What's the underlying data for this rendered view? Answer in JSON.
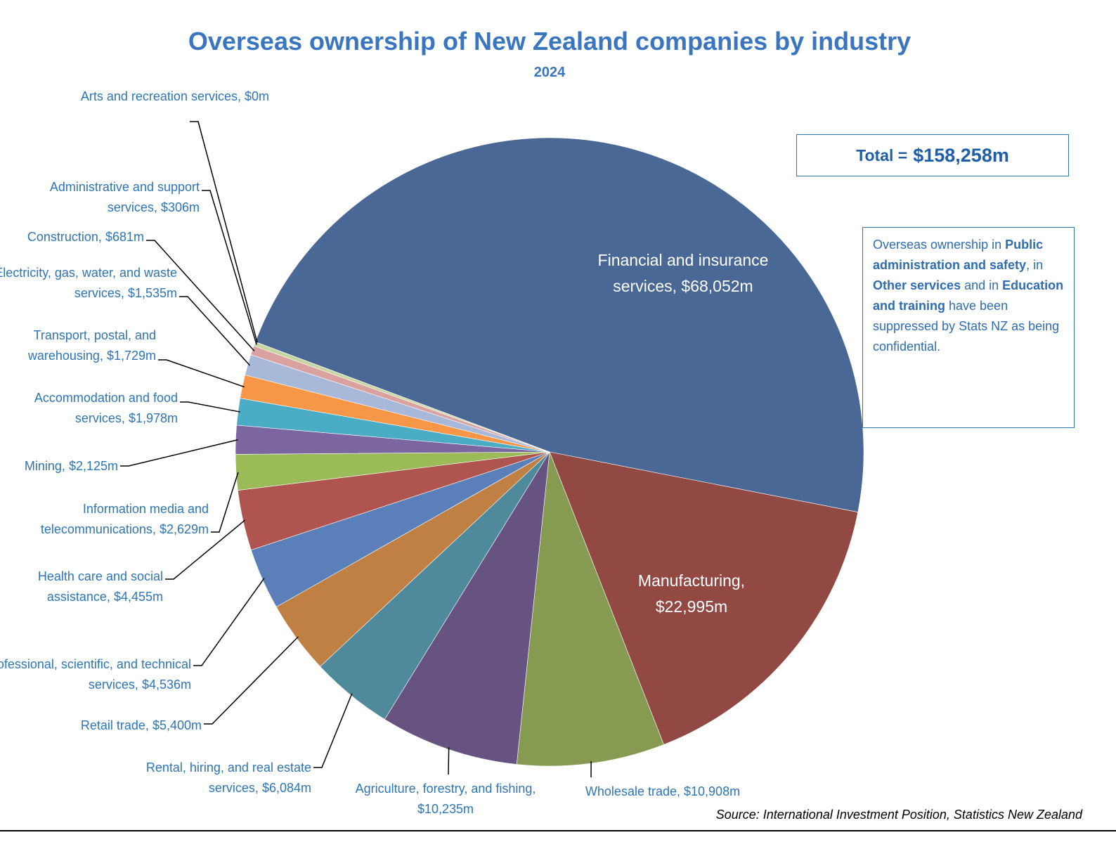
{
  "chart_data": {
    "type": "pie",
    "title": "Overseas ownership of New Zealand companies by industry",
    "subtitle": "2024",
    "categories": [
      "Financial and insurance services,",
      "Manufacturing,",
      "Wholesale trade,",
      "Agriculture, forestry, and fishing,",
      "Rental, hiring, and real estate services,",
      "Retail trade,",
      "Professional, scientific, and technical services,",
      "Health care and social assistance,",
      "Information media and telecommunications,",
      "Mining,",
      "Accommodation and food services,",
      "Transport, postal, and warehousing,",
      "Electricity, gas, water, and waste services,",
      "Construction,",
      "Administrative and support services,",
      "Arts and recreation services,"
    ],
    "values": [
      68052,
      22995,
      10908,
      10235,
      6084,
      5400,
      4536,
      4455,
      2629,
      2125,
      1978,
      1729,
      1535,
      681,
      306,
      0
    ],
    "value_labels": [
      "$68,052m",
      "$22,995m",
      "$10,908m",
      "$10,235m",
      "$6,084m",
      "$5,400m",
      "$4,536m",
      "$4,455m",
      "$2,629m",
      "$2,125m",
      "$1,978m",
      "$1,729m",
      "$1,535m",
      "$681m",
      "$306m",
      "$0m"
    ],
    "colors": [
      "#4a6896",
      "#924843",
      "#869a52",
      "#665382",
      "#4f8a9c",
      "#c07f43",
      "#5a7fb9",
      "#b05450",
      "#9bbb59",
      "#7b66a0",
      "#4bacc6",
      "#f79646",
      "#a8b8d8",
      "#d9a2a0",
      "#c7d6a0",
      "#e6e0ec"
    ],
    "total": {
      "label": "Total =",
      "value_label": "$158,258m"
    },
    "note": [
      {
        "text": "Overseas ownership in ",
        "bold": false
      },
      {
        "text": "Public administration and safety",
        "bold": true
      },
      {
        "text": ", in ",
        "bold": false
      },
      {
        "text": "Other services",
        "bold": true
      },
      {
        "text": " and in ",
        "bold": false
      },
      {
        "text": "Education and training",
        "bold": true
      },
      {
        "text": " have been suppressed by Stats NZ as being confidential.",
        "bold": false
      }
    ],
    "source": "Source: International Investment Position, Statistics New Zealand"
  }
}
